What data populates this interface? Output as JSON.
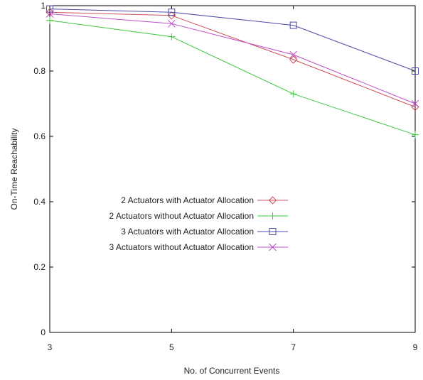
{
  "chart_data": {
    "type": "line",
    "title": "",
    "xlabel": "No. of Concurrent Events",
    "ylabel": "On-Time Reachability",
    "x": [
      3,
      5,
      7,
      9
    ],
    "xlim": [
      3,
      9
    ],
    "ylim": [
      0,
      1
    ],
    "x_ticks": [
      "3",
      "5",
      "7",
      "9"
    ],
    "y_ticks": [
      "0",
      "0.2",
      "0.4",
      "0.6",
      "0.8",
      "1"
    ],
    "grid": false,
    "legend_position": "left",
    "series": [
      {
        "name": "2 Actuators with Actuator Allocation",
        "marker": "diamond",
        "color": "#d0505a",
        "values": [
          0.98,
          0.97,
          0.835,
          0.69
        ]
      },
      {
        "name": "2 Actuators without Actuator Allocation",
        "marker": "plus",
        "color": "#3ec83e",
        "values": [
          0.955,
          0.905,
          0.73,
          0.605
        ]
      },
      {
        "name": "3 Actuators with Actuator Allocation",
        "marker": "square",
        "color": "#4b4ba8",
        "values": [
          0.99,
          0.98,
          0.94,
          0.8
        ]
      },
      {
        "name": "3 Actuators without Actuator Allocation",
        "marker": "cross",
        "color": "#c050c8",
        "values": [
          0.975,
          0.945,
          0.85,
          0.7
        ]
      }
    ]
  }
}
